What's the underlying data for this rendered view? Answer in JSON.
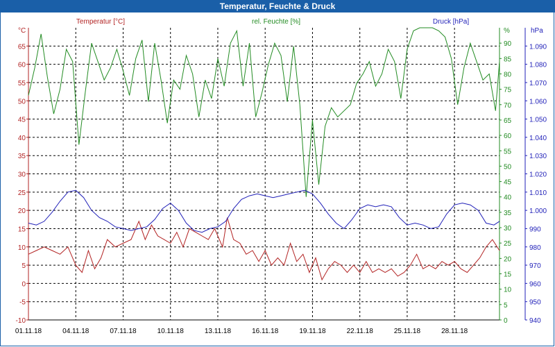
{
  "window": {
    "title": "Temperatur, Feuchte & Druck"
  },
  "chart_data": {
    "type": "line",
    "title": "Temperatur, Feuchte & Druck",
    "x_ticks": [
      "01.11.18",
      "04.11.18",
      "07.11.18",
      "10.11.18",
      "13.11.18",
      "16.11.18",
      "19.11.18",
      "22.11.18",
      "25.11.18",
      "28.11.18"
    ],
    "x_range": [
      0,
      29.85
    ],
    "grid": true,
    "colors": {
      "temperature": "#b22222",
      "humidity": "#228b22",
      "pressure": "#1f1fb8"
    },
    "axes": {
      "temperature": {
        "unit": "°C",
        "ticks": [
          "65",
          "60",
          "55",
          "50",
          "45",
          "40",
          "35",
          "30",
          "25",
          "20",
          "15",
          "10",
          "5",
          "0",
          "-5",
          "-10"
        ],
        "range": [
          -10,
          70
        ]
      },
      "humidity": {
        "unit": "%",
        "ticks": [
          "90",
          "85",
          "80",
          "75",
          "70",
          "65",
          "60",
          "55",
          "50",
          "45",
          "40",
          "35",
          "30",
          "25",
          "20",
          "15",
          "10",
          "5",
          "0"
        ],
        "range": [
          0,
          95
        ]
      },
      "pressure": {
        "unit": "hPa",
        "ticks": [
          "1.090",
          "1.080",
          "1.070",
          "1.060",
          "1.050",
          "1.040",
          "1.030",
          "1.020",
          "1.010",
          "1.000",
          "990",
          "980",
          "970",
          "960",
          "950",
          "940"
        ],
        "range": [
          940,
          1100
        ]
      }
    },
    "series": [
      {
        "name": "Temperatur [°C]",
        "axis": "temperature",
        "values": [
          [
            0,
            8
          ],
          [
            0.5,
            9
          ],
          [
            1,
            10
          ],
          [
            1.5,
            9
          ],
          [
            2,
            8
          ],
          [
            2.5,
            10
          ],
          [
            3,
            5
          ],
          [
            3.4,
            3
          ],
          [
            3.8,
            9
          ],
          [
            4.2,
            4
          ],
          [
            4.6,
            7
          ],
          [
            5,
            12
          ],
          [
            5.5,
            10
          ],
          [
            6,
            11
          ],
          [
            6.5,
            12
          ],
          [
            7,
            17
          ],
          [
            7.4,
            12
          ],
          [
            7.8,
            16
          ],
          [
            8.2,
            13
          ],
          [
            8.6,
            12
          ],
          [
            9,
            11
          ],
          [
            9.4,
            14
          ],
          [
            9.8,
            10
          ],
          [
            10.2,
            15
          ],
          [
            10.6,
            14
          ],
          [
            11,
            13
          ],
          [
            11.4,
            12
          ],
          [
            11.8,
            15
          ],
          [
            12.3,
            10
          ],
          [
            12.6,
            18
          ],
          [
            13,
            12
          ],
          [
            13.4,
            11
          ],
          [
            13.8,
            8
          ],
          [
            14.2,
            9
          ],
          [
            14.6,
            6
          ],
          [
            15,
            9
          ],
          [
            15.4,
            5
          ],
          [
            15.8,
            7
          ],
          [
            16.2,
            5
          ],
          [
            16.6,
            11
          ],
          [
            17,
            6
          ],
          [
            17.4,
            8
          ],
          [
            17.8,
            3
          ],
          [
            18.2,
            7
          ],
          [
            18.6,
            1
          ],
          [
            19,
            4
          ],
          [
            19.4,
            6
          ],
          [
            19.8,
            5
          ],
          [
            20.2,
            3
          ],
          [
            20.6,
            5
          ],
          [
            21,
            3
          ],
          [
            21.4,
            6
          ],
          [
            21.8,
            3
          ],
          [
            22.2,
            4
          ],
          [
            22.6,
            3
          ],
          [
            23,
            4
          ],
          [
            23.4,
            2
          ],
          [
            23.8,
            3
          ],
          [
            24.2,
            5
          ],
          [
            24.6,
            8
          ],
          [
            25,
            4
          ],
          [
            25.4,
            5
          ],
          [
            25.8,
            4
          ],
          [
            26.2,
            6
          ],
          [
            26.6,
            5
          ],
          [
            27,
            6
          ],
          [
            27.4,
            4
          ],
          [
            27.8,
            3
          ],
          [
            28.2,
            5
          ],
          [
            28.6,
            7
          ],
          [
            29,
            10
          ],
          [
            29.4,
            12
          ],
          [
            29.85,
            9
          ]
        ]
      },
      {
        "name": "rel. Feuchte [%]",
        "axis": "humidity",
        "values": [
          [
            0,
            73
          ],
          [
            0.4,
            82
          ],
          [
            0.8,
            93
          ],
          [
            1.2,
            79
          ],
          [
            1.6,
            67
          ],
          [
            2,
            75
          ],
          [
            2.4,
            88
          ],
          [
            2.8,
            84
          ],
          [
            3.2,
            57
          ],
          [
            3.6,
            74
          ],
          [
            4,
            90
          ],
          [
            4.4,
            84
          ],
          [
            4.8,
            78
          ],
          [
            5.2,
            82
          ],
          [
            5.6,
            88
          ],
          [
            6,
            81
          ],
          [
            6.4,
            73
          ],
          [
            6.8,
            85
          ],
          [
            7.2,
            91
          ],
          [
            7.6,
            71
          ],
          [
            8,
            90
          ],
          [
            8.4,
            78
          ],
          [
            8.8,
            64
          ],
          [
            9.2,
            78
          ],
          [
            9.6,
            75
          ],
          [
            10,
            86
          ],
          [
            10.4,
            80
          ],
          [
            10.8,
            66
          ],
          [
            11.2,
            78
          ],
          [
            11.6,
            72
          ],
          [
            12,
            85
          ],
          [
            12.4,
            76
          ],
          [
            12.8,
            90
          ],
          [
            13.2,
            94
          ],
          [
            13.6,
            76
          ],
          [
            14,
            90
          ],
          [
            14.4,
            66
          ],
          [
            14.8,
            74
          ],
          [
            15.2,
            83
          ],
          [
            15.6,
            90
          ],
          [
            16,
            86
          ],
          [
            16.4,
            71
          ],
          [
            16.8,
            89
          ],
          [
            17.2,
            70
          ],
          [
            17.6,
            40
          ],
          [
            18,
            65
          ],
          [
            18.4,
            44
          ],
          [
            18.8,
            63
          ],
          [
            19.2,
            69
          ],
          [
            19.6,
            66
          ],
          [
            20,
            68
          ],
          [
            20.4,
            70
          ],
          [
            20.8,
            77
          ],
          [
            21.2,
            80
          ],
          [
            21.6,
            84
          ],
          [
            22,
            76
          ],
          [
            22.4,
            80
          ],
          [
            22.8,
            88
          ],
          [
            23.2,
            84
          ],
          [
            23.6,
            72
          ],
          [
            24,
            88
          ],
          [
            24.4,
            94
          ],
          [
            24.8,
            96
          ],
          [
            25.2,
            98
          ],
          [
            25.6,
            100
          ],
          [
            26,
            94
          ],
          [
            26.4,
            92
          ],
          [
            26.8,
            85
          ],
          [
            27.2,
            70
          ],
          [
            27.6,
            82
          ],
          [
            28,
            90
          ],
          [
            28.4,
            84
          ],
          [
            28.8,
            78
          ],
          [
            29.2,
            80
          ],
          [
            29.6,
            68
          ],
          [
            29.85,
            84
          ]
        ]
      },
      {
        "name": "Druck [hPa]",
        "axis": "pressure",
        "values": [
          [
            0,
            993
          ],
          [
            0.5,
            992
          ],
          [
            1,
            994
          ],
          [
            1.5,
            999
          ],
          [
            2,
            1005
          ],
          [
            2.5,
            1010
          ],
          [
            3,
            1011
          ],
          [
            3.5,
            1007
          ],
          [
            4,
            1000
          ],
          [
            4.5,
            996
          ],
          [
            5,
            994
          ],
          [
            5.5,
            991
          ],
          [
            6,
            990
          ],
          [
            6.5,
            989
          ],
          [
            7,
            990
          ],
          [
            7.5,
            991
          ],
          [
            8,
            995
          ],
          [
            8.5,
            1001
          ],
          [
            9,
            1004
          ],
          [
            9.5,
            1000
          ],
          [
            10,
            993
          ],
          [
            10.5,
            989
          ],
          [
            11,
            988
          ],
          [
            11.5,
            990
          ],
          [
            12,
            991
          ],
          [
            12.5,
            994
          ],
          [
            13,
            1001
          ],
          [
            13.5,
            1006
          ],
          [
            14,
            1008
          ],
          [
            14.5,
            1009
          ],
          [
            15,
            1008
          ],
          [
            15.5,
            1007
          ],
          [
            16,
            1008
          ],
          [
            16.5,
            1009
          ],
          [
            17,
            1010
          ],
          [
            17.5,
            1011
          ],
          [
            18,
            1009
          ],
          [
            18.5,
            1004
          ],
          [
            19,
            998
          ],
          [
            19.5,
            993
          ],
          [
            20,
            990
          ],
          [
            20.5,
            995
          ],
          [
            21,
            1001
          ],
          [
            21.5,
            1003
          ],
          [
            22,
            1002
          ],
          [
            22.5,
            1003
          ],
          [
            23,
            1002
          ],
          [
            23.5,
            996
          ],
          [
            24,
            992
          ],
          [
            24.5,
            993
          ],
          [
            25,
            992
          ],
          [
            25.5,
            990
          ],
          [
            26,
            991
          ],
          [
            26.5,
            998
          ],
          [
            27,
            1003
          ],
          [
            27.5,
            1004
          ],
          [
            28,
            1003
          ],
          [
            28.5,
            1000
          ],
          [
            29,
            993
          ],
          [
            29.5,
            992
          ],
          [
            29.85,
            994
          ]
        ]
      }
    ]
  }
}
